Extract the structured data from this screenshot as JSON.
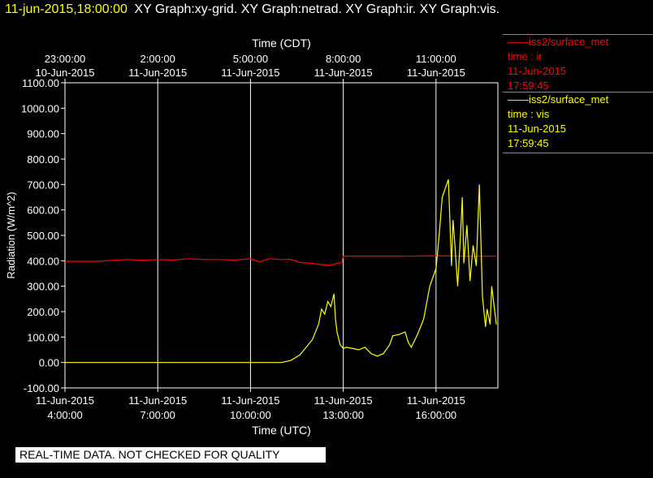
{
  "title": {
    "date": "11-jun-2015,18:00:00",
    "graphs": "XY Graph:xy-grid.  XY Graph:netrad.  XY Graph:ir.  XY Graph:vis."
  },
  "legend": [
    {
      "line1": "——iss2/surface_met",
      "line2": "time : ir",
      "line3": "11-Jun-2015",
      "line4": "17:59:45",
      "color": "#ff0000"
    },
    {
      "line1": "——iss2/surface_met",
      "line2": "time : vis",
      "line3": "11-Jun-2015",
      "line4": "17:59:45",
      "color": "#ffff00"
    }
  ],
  "footer": "REAL-TIME DATA. NOT CHECKED FOR QUALITY",
  "chart_data": {
    "type": "line",
    "xlabel_bottom": "Time (UTC)",
    "xlabel_top": "Time (CDT)",
    "ylabel": "Radiation (W/m^2)",
    "xlim_hours_utc": [
      4.0,
      18.0
    ],
    "ylim": [
      -100,
      1100
    ],
    "grid": true,
    "bottom_ticks": [
      {
        "h": 4,
        "l1": "11-Jun-2015",
        "l2": "4:00:00"
      },
      {
        "h": 7,
        "l1": "11-Jun-2015",
        "l2": "7:00:00"
      },
      {
        "h": 10,
        "l1": "11-Jun-2015",
        "l2": "10:00:00"
      },
      {
        "h": 13,
        "l1": "11-Jun-2015",
        "l2": "13:00:00"
      },
      {
        "h": 16,
        "l1": "11-Jun-2015",
        "l2": "16:00:00"
      }
    ],
    "top_ticks": [
      {
        "h": 4,
        "l1": "23:00:00",
        "l2": "10-Jun-2015"
      },
      {
        "h": 7,
        "l1": "2:00:00",
        "l2": "11-Jun-2015"
      },
      {
        "h": 10,
        "l1": "5:00:00",
        "l2": "11-Jun-2015"
      },
      {
        "h": 13,
        "l1": "8:00:00",
        "l2": "11-Jun-2015"
      },
      {
        "h": 16,
        "l1": "11:00:00",
        "l2": "11-Jun-2015"
      }
    ],
    "y_ticks": [
      "1100.00",
      "1000.00",
      "900.00",
      "800.00",
      "700.00",
      "600.00",
      "500.00",
      "400.00",
      "300.00",
      "200.00",
      "100.00",
      "0.00",
      "-100.00"
    ],
    "series": [
      {
        "name": "ir",
        "color": "#ff0000",
        "x": [
          4.0,
          5.0,
          6.0,
          6.5,
          7.0,
          7.5,
          8.0,
          8.5,
          9.0,
          9.5,
          10.0,
          10.3,
          10.6,
          11.0,
          11.3,
          11.6,
          12.0,
          12.3,
          12.6,
          12.8,
          12.95,
          13.0,
          14.0,
          15.0,
          16.0,
          17.0,
          17.95
        ],
        "y": [
          398,
          398,
          405,
          402,
          405,
          403,
          408,
          405,
          405,
          403,
          408,
          396,
          408,
          405,
          406,
          393,
          390,
          385,
          383,
          390,
          392,
          418,
          418,
          418,
          420,
          418,
          418
        ]
      },
      {
        "name": "vis",
        "color": "#ffff00",
        "x": [
          4.0,
          10.0,
          11.0,
          11.3,
          11.6,
          11.8,
          12.0,
          12.2,
          12.3,
          12.4,
          12.5,
          12.6,
          12.7,
          12.75,
          12.8,
          12.9,
          13.0,
          13.1,
          13.3,
          13.5,
          13.7,
          13.9,
          14.1,
          14.3,
          14.5,
          14.6,
          14.8,
          15.0,
          15.1,
          15.2,
          15.4,
          15.6,
          15.8,
          16.0,
          16.1,
          16.2,
          16.4,
          16.5,
          16.55,
          16.6,
          16.7,
          16.8,
          16.85,
          16.9,
          17.0,
          17.1,
          17.2,
          17.3,
          17.4,
          17.5,
          17.6,
          17.65,
          17.7,
          17.75,
          17.8,
          17.95
        ],
        "y": [
          0,
          0,
          0,
          8,
          30,
          60,
          90,
          150,
          210,
          190,
          240,
          220,
          270,
          170,
          120,
          70,
          55,
          60,
          55,
          50,
          60,
          35,
          25,
          35,
          70,
          105,
          110,
          120,
          80,
          60,
          110,
          170,
          300,
          370,
          500,
          650,
          720,
          380,
          560,
          480,
          300,
          520,
          650,
          390,
          540,
          320,
          460,
          380,
          700,
          260,
          140,
          210,
          180,
          150,
          300,
          150
        ]
      }
    ]
  }
}
